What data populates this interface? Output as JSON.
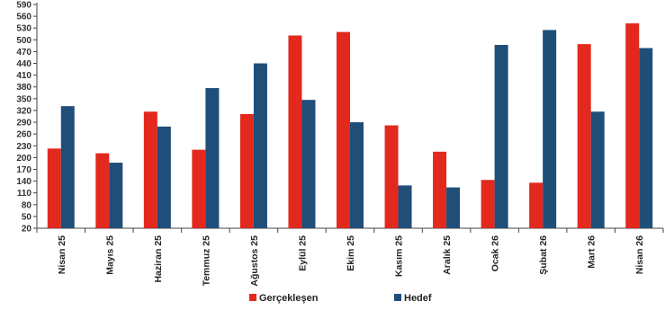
{
  "chart_data": {
    "type": "bar",
    "categories": [
      "Nisan 25",
      "Mayıs 25",
      "Haziran 25",
      "Temmuz 25",
      "Ağustos 25",
      "Eylül 25",
      "Ekim 25",
      "Kasım 25",
      "Aralık 25",
      "Ocak 26",
      "Şubat 26",
      "Mart 26",
      "Nisan 26"
    ],
    "series": [
      {
        "name": "Gerçekleşen",
        "color": "#e3281e",
        "values": [
          223,
          211,
          317,
          220,
          311,
          511,
          520,
          282,
          215,
          143,
          136,
          489,
          542
        ]
      },
      {
        "name": "Hedef",
        "color": "#1f4e79",
        "values": [
          331,
          187,
          279,
          377,
          440,
          347,
          290,
          129,
          124,
          487,
          525,
          317,
          479
        ]
      }
    ],
    "yticks": [
      20,
      50,
      80,
      110,
      140,
      170,
      200,
      230,
      260,
      290,
      320,
      350,
      380,
      410,
      440,
      470,
      500,
      530,
      560,
      590
    ],
    "ylim": [
      20,
      590
    ],
    "title": "",
    "xlabel": "",
    "ylabel": "",
    "legend_position": "bottom",
    "grid": false
  }
}
